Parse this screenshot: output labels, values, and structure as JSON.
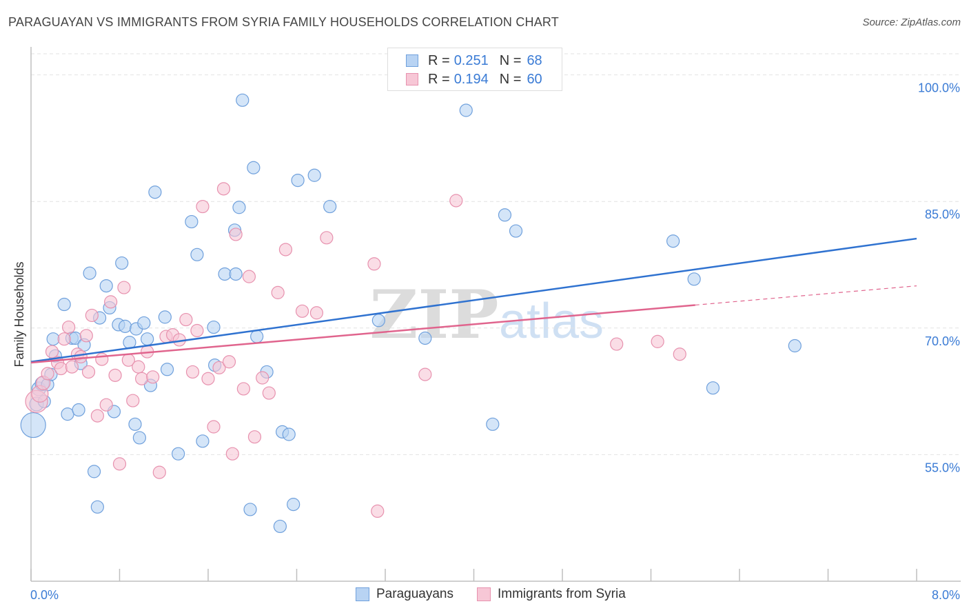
{
  "title": "PARAGUAYAN VS IMMIGRANTS FROM SYRIA FAMILY HOUSEHOLDS CORRELATION CHART",
  "source": "Source: ZipAtlas.com",
  "watermark": {
    "zip": "ZIP",
    "atlas": "atlas"
  },
  "legend": {
    "rows": [
      {
        "r_label": "R =",
        "r_value": "0.251",
        "n_label": "N =",
        "n_value": "68"
      },
      {
        "r_label": "R =",
        "r_value": "0.194",
        "n_label": "N =",
        "n_value": "60"
      }
    ]
  },
  "bottom_legend": {
    "series1": "Paraguayans",
    "series2": "Immigrants from Syria"
  },
  "colors": {
    "blue_fill": "#b8d3f3",
    "blue_stroke": "#6fa0dc",
    "blue_line": "#2f72d0",
    "pink_fill": "#f7c7d6",
    "pink_stroke": "#e791ae",
    "pink_line": "#e0648d",
    "axis_text": "#3a7bd5"
  },
  "chart_data": {
    "type": "scatter",
    "title": "PARAGUAYAN VS IMMIGRANTS FROM SYRIA FAMILY HOUSEHOLDS CORRELATION CHART",
    "xlabel": "",
    "ylabel": "Family Households",
    "xlim": [
      0,
      8
    ],
    "ylim": [
      40,
      102.5
    ],
    "x_tick_labels": [
      "0.0%",
      "8.0%"
    ],
    "y_ticks": [
      55,
      70,
      85,
      100
    ],
    "y_tick_labels": [
      "55.0%",
      "70.0%",
      "85.0%",
      "100.0%"
    ],
    "series": [
      {
        "name": "Paraguayans",
        "r": 0.251,
        "n": 68,
        "trend": {
          "x0": 0,
          "y0": 66.0,
          "x1": 8,
          "y1": 80.6,
          "dash_from": null
        },
        "points": [
          [
            0.02,
            58.5,
            18
          ],
          [
            0.05,
            61.0,
            10
          ],
          [
            0.07,
            62.8,
            10
          ],
          [
            0.1,
            63.4,
            10
          ],
          [
            0.12,
            61.3,
            9
          ],
          [
            0.15,
            63.3,
            9
          ],
          [
            0.18,
            64.5,
            9
          ],
          [
            0.2,
            68.7,
            9
          ],
          [
            0.22,
            66.7,
            9
          ],
          [
            0.3,
            72.8,
            9
          ],
          [
            0.33,
            59.8,
            9
          ],
          [
            0.37,
            68.8,
            9
          ],
          [
            0.4,
            68.8,
            9
          ],
          [
            0.43,
            60.3,
            9
          ],
          [
            0.45,
            65.8,
            9
          ],
          [
            0.48,
            68.0,
            9
          ],
          [
            0.53,
            76.5,
            9
          ],
          [
            0.57,
            53.0,
            9
          ],
          [
            0.6,
            48.8,
            9
          ],
          [
            0.62,
            71.2,
            9
          ],
          [
            0.68,
            75.0,
            9
          ],
          [
            0.71,
            72.4,
            9
          ],
          [
            0.75,
            60.1,
            9
          ],
          [
            0.79,
            70.4,
            9
          ],
          [
            0.82,
            77.7,
            9
          ],
          [
            0.85,
            70.2,
            9
          ],
          [
            0.89,
            68.3,
            9
          ],
          [
            0.94,
            58.6,
            9
          ],
          [
            0.95,
            69.9,
            9
          ],
          [
            0.98,
            57.0,
            9
          ],
          [
            1.02,
            70.6,
            9
          ],
          [
            1.05,
            68.7,
            9
          ],
          [
            1.08,
            63.2,
            9
          ],
          [
            1.12,
            86.1,
            9
          ],
          [
            1.21,
            71.3,
            9
          ],
          [
            1.23,
            65.1,
            9
          ],
          [
            1.33,
            55.1,
            9
          ],
          [
            1.45,
            82.6,
            9
          ],
          [
            1.5,
            78.7,
            9
          ],
          [
            1.55,
            56.6,
            9
          ],
          [
            1.65,
            70.1,
            9
          ],
          [
            1.66,
            65.6,
            9
          ],
          [
            1.75,
            76.4,
            9
          ],
          [
            1.84,
            81.6,
            9
          ],
          [
            1.85,
            76.4,
            9
          ],
          [
            1.88,
            84.3,
            9
          ],
          [
            1.91,
            97.0,
            9
          ],
          [
            1.98,
            48.5,
            9
          ],
          [
            2.01,
            89.0,
            9
          ],
          [
            2.04,
            69.0,
            9
          ],
          [
            2.13,
            64.8,
            9
          ],
          [
            2.25,
            46.5,
            9
          ],
          [
            2.27,
            57.7,
            9
          ],
          [
            2.33,
            57.4,
            9
          ],
          [
            2.37,
            49.1,
            9
          ],
          [
            2.41,
            87.5,
            9
          ],
          [
            2.56,
            88.1,
            9
          ],
          [
            2.7,
            84.4,
            9
          ],
          [
            3.14,
            70.9,
            9
          ],
          [
            3.56,
            68.8,
            9
          ],
          [
            3.93,
            95.8,
            9
          ],
          [
            4.17,
            58.6,
            9
          ],
          [
            4.28,
            83.4,
            9
          ],
          [
            4.38,
            81.5,
            9
          ],
          [
            5.8,
            80.3,
            9
          ],
          [
            5.99,
            75.8,
            9
          ],
          [
            6.16,
            62.9,
            9
          ],
          [
            6.9,
            67.9,
            9
          ]
        ]
      },
      {
        "name": "Immigrants from Syria",
        "r": 0.194,
        "n": 60,
        "trend": {
          "x0": 0,
          "y0": 65.9,
          "x1": 8,
          "y1": 75.0,
          "dash_from": 6.0
        },
        "points": [
          [
            0.05,
            61.3,
            16
          ],
          [
            0.08,
            62.2,
            12
          ],
          [
            0.11,
            63.5,
            10
          ],
          [
            0.15,
            64.6,
            9
          ],
          [
            0.19,
            67.2,
            9
          ],
          [
            0.24,
            65.9,
            9
          ],
          [
            0.27,
            65.2,
            9
          ],
          [
            0.3,
            68.7,
            9
          ],
          [
            0.34,
            70.1,
            9
          ],
          [
            0.37,
            65.4,
            9
          ],
          [
            0.42,
            66.9,
            9
          ],
          [
            0.45,
            66.6,
            9
          ],
          [
            0.5,
            69.1,
            9
          ],
          [
            0.55,
            71.5,
            9
          ],
          [
            0.6,
            59.6,
            9
          ],
          [
            0.64,
            66.3,
            9
          ],
          [
            0.68,
            60.9,
            9
          ],
          [
            0.72,
            73.1,
            9
          ],
          [
            0.76,
            64.4,
            9
          ],
          [
            0.8,
            53.9,
            9
          ],
          [
            0.84,
            74.8,
            9
          ],
          [
            0.88,
            66.2,
            9
          ],
          [
            0.92,
            61.4,
            9
          ],
          [
            0.97,
            65.4,
            9
          ],
          [
            1.0,
            64.0,
            9
          ],
          [
            1.05,
            67.2,
            9
          ],
          [
            1.1,
            64.2,
            9
          ],
          [
            1.16,
            52.9,
            9
          ],
          [
            1.22,
            69.0,
            9
          ],
          [
            1.28,
            69.2,
            9
          ],
          [
            1.34,
            68.6,
            9
          ],
          [
            1.4,
            71.0,
            9
          ],
          [
            1.46,
            64.8,
            9
          ],
          [
            1.5,
            69.7,
            9
          ],
          [
            1.55,
            84.4,
            9
          ],
          [
            1.6,
            64.0,
            9
          ],
          [
            1.65,
            58.3,
            9
          ],
          [
            1.7,
            65.3,
            9
          ],
          [
            1.74,
            86.5,
            9
          ],
          [
            1.79,
            66.0,
            9
          ],
          [
            1.85,
            81.1,
            9
          ],
          [
            1.92,
            62.8,
            9
          ],
          [
            1.97,
            76.1,
            9
          ],
          [
            2.02,
            57.1,
            9
          ],
          [
            2.09,
            64.1,
            9
          ],
          [
            2.15,
            62.3,
            9
          ],
          [
            2.23,
            74.2,
            9
          ],
          [
            2.3,
            79.3,
            9
          ],
          [
            2.45,
            72.0,
            9
          ],
          [
            2.58,
            71.8,
            9
          ],
          [
            2.67,
            80.7,
            9
          ],
          [
            3.13,
            48.3,
            9
          ],
          [
            3.1,
            77.6,
            9
          ],
          [
            3.56,
            64.5,
            9
          ],
          [
            3.84,
            85.1,
            9
          ],
          [
            1.82,
            55.1,
            9
          ],
          [
            5.29,
            68.1,
            9
          ],
          [
            5.66,
            68.4,
            9
          ],
          [
            5.86,
            66.9,
            9
          ],
          [
            0.52,
            64.8,
            9
          ]
        ]
      }
    ]
  }
}
